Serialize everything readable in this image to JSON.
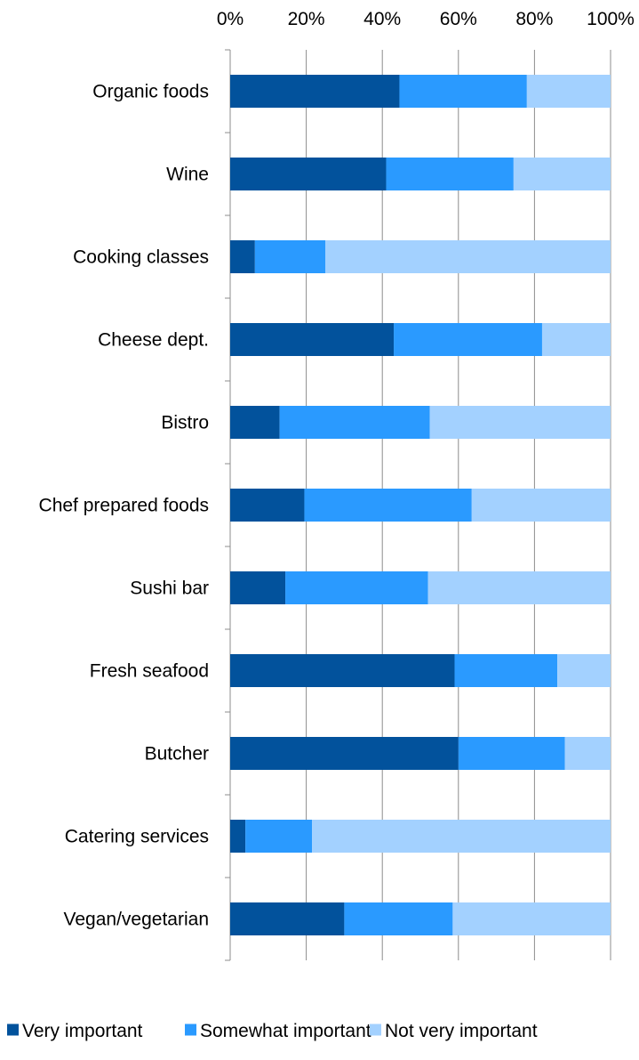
{
  "chart_data": {
    "type": "bar",
    "orientation": "horizontal",
    "stacked": "percent",
    "categories": [
      "Organic foods",
      "Wine",
      "Cooking classes",
      "Cheese dept.",
      "Bistro",
      "Chef prepared foods",
      "Sushi bar",
      "Fresh seafood",
      "Butcher",
      "Catering services",
      "Vegan/vegetarian"
    ],
    "series": [
      {
        "name": "Very important",
        "color": "#02529C",
        "values": [
          44.5,
          41,
          6.5,
          43,
          13,
          19.5,
          14.5,
          59,
          60,
          4,
          30
        ]
      },
      {
        "name": "Somewhat important",
        "color": "#2A9AFF",
        "values": [
          33.5,
          33.5,
          18.5,
          39,
          39.5,
          44,
          37.5,
          27,
          28,
          17.5,
          28.5
        ]
      },
      {
        "name": "Not very important",
        "color": "#A3D1FF",
        "values": [
          22,
          25.5,
          75,
          18,
          47.5,
          36.5,
          48,
          14,
          12,
          78.5,
          41.5
        ]
      }
    ],
    "x_ticks": [
      "0%",
      "20%",
      "40%",
      "60%",
      "80%",
      "100%"
    ],
    "xlim": [
      0,
      100
    ],
    "x_axis_position": "top",
    "grid": true,
    "legend_position": "bottom"
  }
}
